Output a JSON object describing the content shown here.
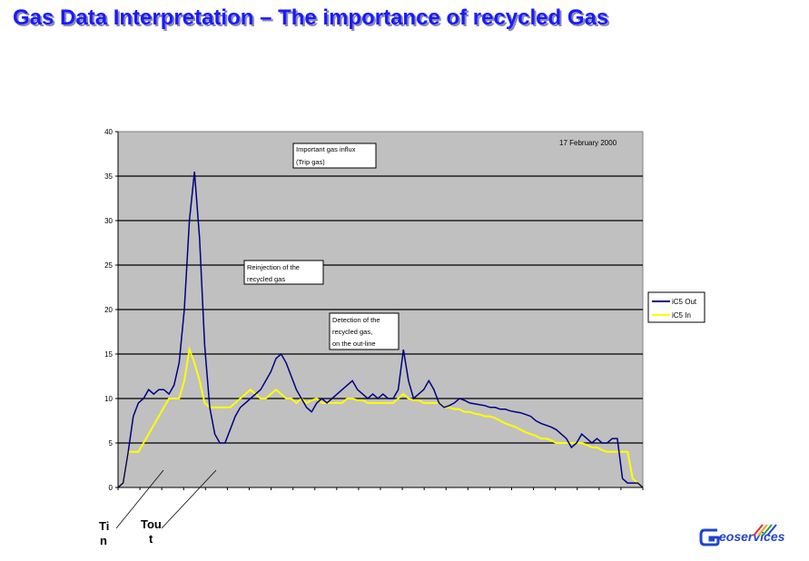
{
  "title": "Gas Data Interpretation – The importance of recycled Gas",
  "logo_text": "eoservices",
  "chart_data": {
    "type": "line",
    "date_note": "17 February 2000",
    "ylim": [
      0,
      40
    ],
    "yticks": [
      0,
      5,
      10,
      15,
      20,
      25,
      30,
      35,
      40
    ],
    "grid": true,
    "legend_position": "right",
    "colors": {
      "plot_bg": "#c0c0c0",
      "out": "#000080",
      "in": "#ffff00"
    },
    "series": [
      {
        "name": "iC5 Out",
        "color": "#000080",
        "values": [
          0,
          0.5,
          4,
          8,
          9.5,
          10,
          11,
          10.5,
          11,
          11,
          10.5,
          11.5,
          14,
          20,
          30,
          35.5,
          28,
          16,
          9,
          6,
          5,
          5,
          6.5,
          8,
          9,
          9.5,
          10,
          10.5,
          11,
          12,
          13,
          14.5,
          15,
          14,
          12.5,
          11,
          10,
          9,
          8.5,
          9.5,
          10,
          9.5,
          10,
          10.5,
          11,
          11.5,
          12,
          11,
          10.5,
          10,
          10.5,
          10,
          10.5,
          10,
          10,
          11,
          15.5,
          12,
          10,
          10.5,
          11,
          12,
          11,
          9.5,
          9,
          9.2,
          9.5,
          10,
          9.8,
          9.5,
          9.4,
          9.3,
          9.2,
          9,
          9,
          8.8,
          8.8,
          8.6,
          8.5,
          8.4,
          8.2,
          8,
          7.5,
          7.2,
          7,
          6.8,
          6.5,
          6,
          5.5,
          4.5,
          5,
          6,
          5.5,
          5,
          5.5,
          5,
          5,
          5.5,
          5.5,
          1,
          0.5,
          0.5,
          0.5,
          0
        ]
      },
      {
        "name": "iC5 In",
        "color": "#ffff00",
        "values": [
          0,
          0.5,
          4,
          4,
          4,
          5,
          6,
          7,
          8,
          9,
          10,
          10,
          10,
          12,
          15.5,
          14,
          12,
          9.5,
          9,
          9,
          9,
          9,
          9,
          9.5,
          10,
          10.5,
          11,
          10.5,
          10,
          10,
          10.5,
          11,
          10.5,
          10,
          10,
          9.5,
          10,
          9.5,
          9.8,
          10,
          9.5,
          9.5,
          9.5,
          9.5,
          9.5,
          10,
          10,
          9.8,
          9.8,
          9.5,
          9.5,
          9.5,
          9.5,
          9.5,
          9.5,
          10,
          10.5,
          10,
          9.8,
          9.8,
          9.5,
          9.5,
          9.5,
          9.5,
          9,
          9,
          8.8,
          8.8,
          8.5,
          8.5,
          8.3,
          8.2,
          8,
          8,
          7.8,
          7.5,
          7.2,
          7,
          6.8,
          6.5,
          6.2,
          6,
          5.8,
          5.5,
          5.5,
          5.3,
          5,
          5,
          5,
          5,
          5,
          5,
          4.8,
          4.5,
          4.5,
          4.2,
          4,
          4,
          4,
          4,
          4,
          1,
          0.5,
          0
        ]
      }
    ],
    "annotations": [
      {
        "text": [
          "Important gas influx",
          "(Trip gas)"
        ]
      },
      {
        "text": [
          "Reinjection of the",
          "recycled gas"
        ]
      },
      {
        "text": [
          "Detection of the",
          "recycled gas,",
          "on the out-line"
        ]
      }
    ],
    "bottom_labels": [
      {
        "text": [
          "Ti",
          "n"
        ]
      },
      {
        "text": [
          "Tou",
          "t"
        ]
      }
    ]
  }
}
